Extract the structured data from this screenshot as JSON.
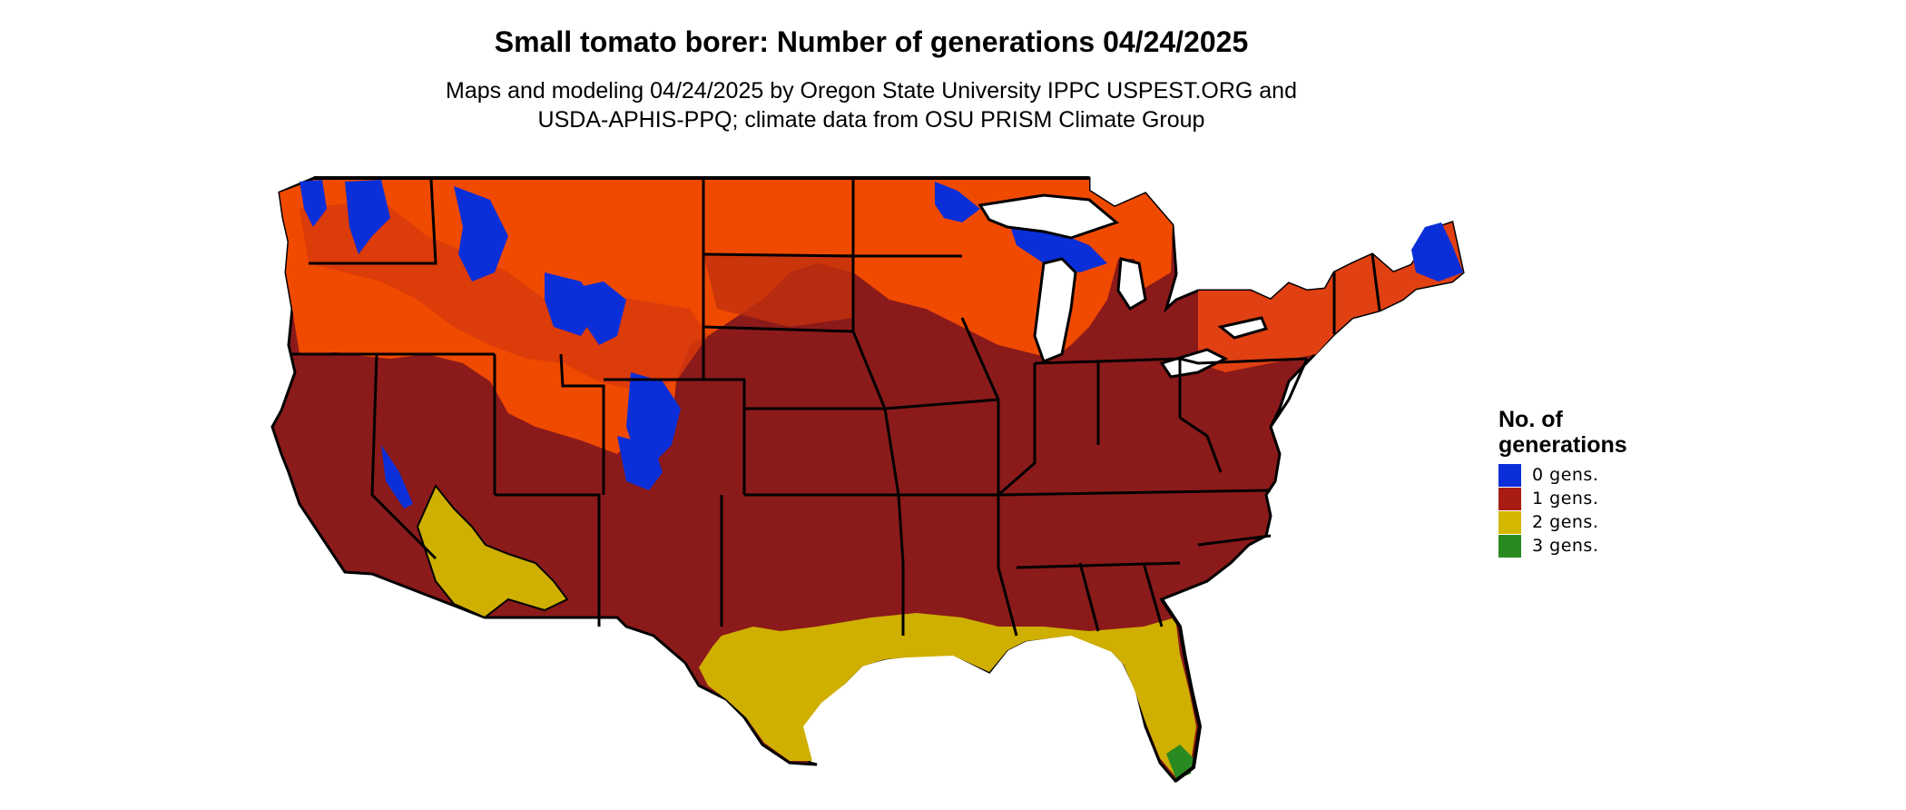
{
  "title": "Small tomato borer: Number of generations 04/24/2025",
  "subtitle_lines": [
    "Maps and modeling 04/24/2025 by Oregon State University IPPC USPEST.ORG and",
    "USDA-APHIS-PPQ; climate data from OSU PRISM Climate Group"
  ],
  "legend": {
    "title_lines": [
      "No. of",
      "generations"
    ],
    "items": [
      {
        "label": "0 gens.",
        "color": "#0a2fd8"
      },
      {
        "label": "1 gens.",
        "color": "#a81c14"
      },
      {
        "label": "2 gens.",
        "color": "#d4b800"
      },
      {
        "label": "3 gens.",
        "color": "#2a8a22"
      }
    ]
  },
  "colors": {
    "one_gen_dark": "#8b1a1a",
    "one_gen_bright": "#f04a00",
    "one_gen_mid": "#d8380c",
    "two_gens": "#cfaf00",
    "three_gens": "#2a8a22",
    "zero_gens": "#0a2fd8",
    "borders": "#000000"
  }
}
